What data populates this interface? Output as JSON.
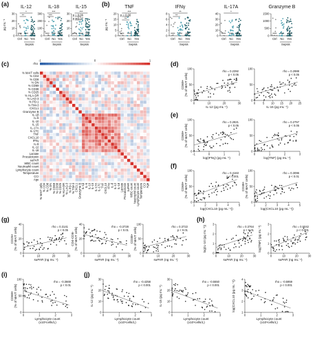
{
  "figure": {
    "panels": [
      {
        "id": "a",
        "letter": "(a)"
      },
      {
        "id": "b",
        "letter": "(b)"
      },
      {
        "id": "c",
        "letter": "(c)"
      },
      {
        "id": "d",
        "letter": "(d)"
      },
      {
        "id": "e",
        "letter": "(e)"
      },
      {
        "id": "f",
        "letter": "(f)"
      },
      {
        "id": "g",
        "letter": "(g)"
      },
      {
        "id": "h",
        "letter": "(h)"
      },
      {
        "id": "i",
        "letter": "(i)"
      },
      {
        "id": "j",
        "letter": "(j)"
      }
    ],
    "colors": {
      "ctrl": "#8a8a8a",
      "no": "#4a9fb0",
      "yes": "#1f5c66",
      "heat_neg": "#2a5fa8",
      "heat_pos": "#d6332c",
      "heat_mid": "#ffffff"
    }
  },
  "chart_data": [
    {
      "type": "scatter",
      "panel": "a",
      "kind": "dot-plot",
      "unit_label": "pg mL⁻¹",
      "group_labels": [
        "Ctrl",
        "No",
        "Yes"
      ],
      "group_caption": "Sepsis",
      "subplots": [
        {
          "title": "IL-12",
          "ylim": [
            0,
            30
          ],
          "yticks": [
            "0",
            "10",
            "20",
            "30"
          ],
          "stats": [
            "*",
            "**"
          ]
        },
        {
          "title": "IL-18",
          "ylim": [
            0,
            300
          ],
          "yticks": [
            "0",
            "100",
            "200",
            "300"
          ],
          "stats": [
            "***",
            "***"
          ]
        },
        {
          "title": "IL-15",
          "ylim": [
            0,
            30
          ],
          "yticks": [
            "0",
            "10",
            "20",
            "30"
          ],
          "stats": [
            "***",
            "p = 0.06",
            "p = 0.07"
          ]
        }
      ]
    },
    {
      "type": "scatter",
      "panel": "b",
      "kind": "dot-plot",
      "unit_label": "pg mL⁻¹",
      "group_labels": [
        "Ctrl",
        "No",
        "Yes"
      ],
      "group_caption": "Sepsis",
      "subplots": [
        {
          "title": "TNF",
          "ylim": [
            0,
            20
          ],
          "yticks": [
            "0",
            "5",
            "10",
            "15",
            "20"
          ],
          "stats": [
            "***",
            "p = 0.06",
            "**"
          ]
        },
        {
          "title": "IFNγ",
          "ylim": [
            0,
            8
          ],
          "yticks": [
            "0",
            "2",
            "4",
            "6",
            "8"
          ],
          "stats": [
            "**",
            "**"
          ]
        },
        {
          "title": "IL-17A",
          "ylim": [
            0,
            40
          ],
          "yticks": [
            "0",
            "10",
            "20",
            "30",
            "40"
          ],
          "stats": [
            "*"
          ]
        },
        {
          "title": "Granzyme B",
          "ylim": [
            0,
            1500
          ],
          "yticks": [
            "0",
            "500",
            "1000",
            "1500"
          ],
          "stats": []
        }
      ]
    },
    {
      "type": "heatmap",
      "panel": "c",
      "legend_label": "rho",
      "legend_ticks": [
        "-1",
        "0",
        "1"
      ],
      "rows": [
        "% MAIT cells",
        "% CD4",
        "% CD8",
        "% DN",
        "% CD69",
        "% CD38",
        "% CD25",
        "% HLA-DR",
        "% LAG-3",
        "% PD-1",
        "% TIM-3",
        "CXCL1",
        "Granzyme B",
        "IL-1β",
        "IL-6",
        "IL-10",
        "IL-15",
        "IL-17A",
        "IL-17C",
        "TNF",
        "CXCL10",
        "IFNγ",
        "IL-8",
        "IL-12",
        "IL-18",
        "Lactate",
        "Procalcitonin",
        "suPAR",
        "WBC count",
        "Neutrophil count",
        "Lymphocyte count",
        "Temperature",
        "CCI",
        "Age"
      ],
      "cols": [
        "% MAIT cells",
        "% CD4",
        "% CD8",
        "% DN",
        "% CD69",
        "% CD38",
        "% CD25",
        "% HLA-DR",
        "% LAG-3",
        "% PD-1",
        "% TIM-3",
        "CXCL1",
        "Granzyme B",
        "IL-1β",
        "IL-6",
        "IL-10",
        "IL-15",
        "IL-17A",
        "IL-17C",
        "TNF",
        "CXCL10",
        "IFNγ",
        "IL-8",
        "IL-12",
        "IL-18",
        "Lactate",
        "Procalcitonin",
        "suPAR",
        "WBC count",
        "Neutrophil count",
        "Lymphocyte count",
        "Temperature",
        "CCI",
        "Age"
      ]
    },
    {
      "type": "scatter",
      "panel": "d",
      "subplots": [
        {
          "ylabel": "CD69+\n(% of MAIT cells)",
          "xlabel": "IL-12 (pg mL⁻¹)",
          "xticks": [
            "0",
            "10",
            "20",
            "30"
          ],
          "yticks": [
            "0",
            "50",
            "100"
          ],
          "xlim": [
            0,
            30
          ],
          "ylim": [
            0,
            100
          ],
          "rho": "rho = 0.2392",
          "p": "p < 0.05"
        },
        {
          "ylabel": "",
          "xlabel": "IL-15 (pg mL⁻¹)",
          "xticks": [
            "0",
            "5",
            "10",
            "15",
            "20",
            "25"
          ],
          "yticks": [
            "0",
            "50",
            "100"
          ],
          "xlim": [
            0,
            25
          ],
          "ylim": [
            0,
            100
          ],
          "rho": "rho = 0.2988",
          "p": "p < 0.05"
        }
      ]
    },
    {
      "type": "scatter",
      "panel": "e",
      "subplots": [
        {
          "ylabel": "CD69+\n(% of MAIT cells)",
          "xlabel": "log(IFNγ) (pg mL⁻¹)",
          "xticks": [
            "-1",
            "0",
            "1",
            "2"
          ],
          "yticks": [
            "0",
            "50",
            "100"
          ],
          "xlim": [
            -1,
            2
          ],
          "ylim": [
            0,
            100
          ],
          "rho": "rho = 0.2821",
          "p": "p < 0.05"
        },
        {
          "ylabel": "",
          "xlabel": "log(TNF) (pg mL⁻¹)",
          "xticks": [
            "0",
            "1",
            "2",
            "3"
          ],
          "yticks": [
            "0",
            "50",
            "100"
          ],
          "xlim": [
            0,
            3
          ],
          "ylim": [
            0,
            100
          ],
          "rho": "rho = 0.2757",
          "p": "p < 0.05"
        }
      ]
    },
    {
      "type": "scatter",
      "panel": "f",
      "subplots": [
        {
          "ylabel": "CD69+\n(% of MAIT cells)",
          "xlabel": "log(CXCL10 (pg mL⁻¹))",
          "xticks": [
            "1",
            "2",
            "3",
            "4",
            "5"
          ],
          "yticks": [
            "0",
            "50",
            "100"
          ],
          "xlim": [
            1,
            5
          ],
          "ylim": [
            0,
            100
          ],
          "rho": "rho = 0.4163",
          "p": "p < 0.001"
        },
        {
          "ylabel": "CD38+\n(% of MAIT cells)",
          "xlabel": "log(CXCL10 (pg mL⁻¹))",
          "xticks": [
            "1",
            "2",
            "3",
            "4",
            "5"
          ],
          "yticks": [
            "0",
            "50",
            "100"
          ],
          "xlim": [
            1,
            5
          ],
          "ylim": [
            0,
            100
          ],
          "rho": "rho = 0.3096",
          "p": "p < 0.01"
        }
      ]
    },
    {
      "type": "scatter",
      "panel": "g",
      "subplots": [
        {
          "ylabel": "CD25+\n(% of MAIT cells)",
          "xlabel": "suPAR (ng mL⁻¹)",
          "xticks": [
            "0",
            "10",
            "20",
            "30"
          ],
          "yticks": [
            "0",
            "20",
            "40"
          ],
          "xlim": [
            0,
            30
          ],
          "ylim": [
            0,
            40
          ],
          "rho": "rho = 0.3141",
          "p": "p < 0.05"
        },
        {
          "ylabel": "CD4-CD8-\n(% of MAIT cells)",
          "xlabel": "suPAR (ng mL⁻¹)",
          "xticks": [
            "0",
            "10",
            "20",
            "30"
          ],
          "yticks": [
            "0",
            "20",
            "40"
          ],
          "xlim": [
            0,
            30
          ],
          "ylim": [
            0,
            40
          ],
          "rho": "rho = -0.3728",
          "p": "p < 0.01"
        },
        {
          "ylabel": "CD38+\n(% of MAIT cells)",
          "xlabel": "suPAR (ng mL⁻¹)",
          "xticks": [
            "0",
            "10",
            "20",
            "30"
          ],
          "yticks": [
            "0",
            "50",
            "100"
          ],
          "xlim": [
            0,
            30
          ],
          "ylim": [
            0,
            100
          ],
          "rho": "rho = 0.3722",
          "p": "p < 0.01"
        }
      ]
    },
    {
      "type": "scatter",
      "panel": "h",
      "subplots": [
        {
          "ylabel": "log(IL-10 (pg mL⁻¹))",
          "xlabel": "suPAR (ng mL⁻¹)",
          "xticks": [
            "0",
            "10",
            "20",
            "30"
          ],
          "yticks": [
            "0",
            "1",
            "2",
            "3"
          ],
          "xlim": [
            0,
            30
          ],
          "ylim": [
            0,
            3
          ],
          "rho": "rho = 0.3764",
          "p": "p < 0.01"
        },
        {
          "ylabel": "log(TNF) (pg mL⁻¹)",
          "xlabel": "suPAR (ng mL⁻¹)",
          "xticks": [
            "0",
            "10",
            "20",
            "30"
          ],
          "yticks": [
            "0",
            "1",
            "2",
            "3"
          ],
          "xlim": [
            0,
            30
          ],
          "ylim": [
            0,
            3
          ],
          "rho": "rho = 0.5042",
          "p": "p < 0.001"
        }
      ]
    },
    {
      "type": "scatter",
      "panel": "i",
      "subplots": [
        {
          "ylabel": "CD69+\n(% of MAIT cells)",
          "xlabel": "Lymphocyte count\n(x10⁹cells/L)",
          "xticks": [
            "0",
            "1",
            "2",
            "3"
          ],
          "yticks": [
            "0",
            "50",
            "100"
          ],
          "xlim": [
            0,
            3
          ],
          "ylim": [
            0,
            100
          ],
          "rho": "rho = -0.3669",
          "p": "p < 0.01"
        }
      ]
    },
    {
      "type": "scatter",
      "panel": "j",
      "subplots": [
        {
          "ylabel": "IL-12 (pg mL⁻¹)",
          "xlabel": "Lymphocyte count\n(x10⁹cells/L)",
          "xticks": [
            "0",
            "1",
            "2",
            "3"
          ],
          "yticks": [
            "0",
            "10",
            "20",
            "30"
          ],
          "xlim": [
            0,
            3
          ],
          "ylim": [
            0,
            30
          ],
          "rho": "rho = -0.4258",
          "p": "p < 0.001"
        },
        {
          "ylabel": "IL-15 (pg mL⁻¹)",
          "xlabel": "Lymphocyte count\n(x10⁹cells/L)",
          "xticks": [
            "0",
            "1",
            "2",
            "3"
          ],
          "yticks": [
            "0",
            "10",
            "20",
            "30"
          ],
          "xlim": [
            0,
            3
          ],
          "ylim": [
            0,
            30
          ],
          "rho": "rho = -0.5550",
          "p": "p < 0.001"
        },
        {
          "ylabel": "log(CXCL10 (pg mL⁻¹))",
          "xlabel": "Lymphocyte count\n(x10⁹cells/L)",
          "xticks": [
            "0",
            "1",
            "2",
            "3"
          ],
          "yticks": [
            "1",
            "2",
            "3",
            "4"
          ],
          "xlim": [
            0,
            3
          ],
          "ylim": [
            1,
            4
          ],
          "rho": "rho = -0.5959",
          "p": "p < 0.001"
        }
      ]
    }
  ]
}
